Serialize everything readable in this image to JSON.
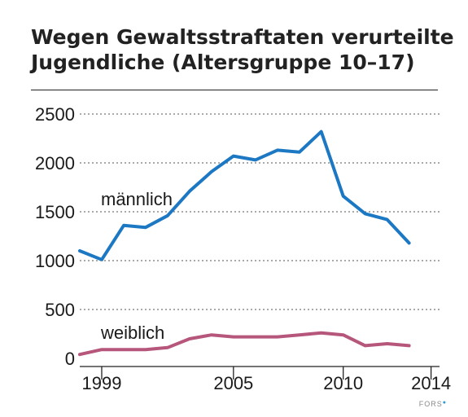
{
  "title": "Wegen Gewaltsstraftaten verurteilte Jugendliche (Altersgruppe 10–17)",
  "credit": "FORS",
  "chart_data": {
    "type": "line",
    "title": "Wegen Gewaltsstraftaten verurteilte Jugendliche (Altersgruppe 10–17)",
    "xlabel": "",
    "ylabel": "",
    "x": [
      1998,
      1999,
      2000,
      2001,
      2002,
      2003,
      2004,
      2005,
      2006,
      2007,
      2008,
      2009,
      2010,
      2011,
      2012,
      2013,
      2014
    ],
    "x_ticks": [
      "1999",
      "2005",
      "2010",
      "2014"
    ],
    "y_ticks": [
      "0",
      "500",
      "1000",
      "1500",
      "2000",
      "2500"
    ],
    "xlim": [
      1998,
      2014.3
    ],
    "ylim": [
      0,
      2500
    ],
    "grid": "horizontal-dotted",
    "series": [
      {
        "name": "männlich",
        "color": "#1d78c4",
        "values": [
          1100,
          1010,
          1360,
          1340,
          1460,
          1710,
          1910,
          2070,
          2030,
          2130,
          2110,
          2320,
          1660,
          1480,
          1420,
          1180,
          null
        ]
      },
      {
        "name": "weiblich",
        "color": "#b5567a",
        "values": [
          40,
          90,
          90,
          90,
          110,
          200,
          240,
          220,
          220,
          220,
          240,
          260,
          240,
          130,
          150,
          130,
          null
        ]
      }
    ]
  }
}
